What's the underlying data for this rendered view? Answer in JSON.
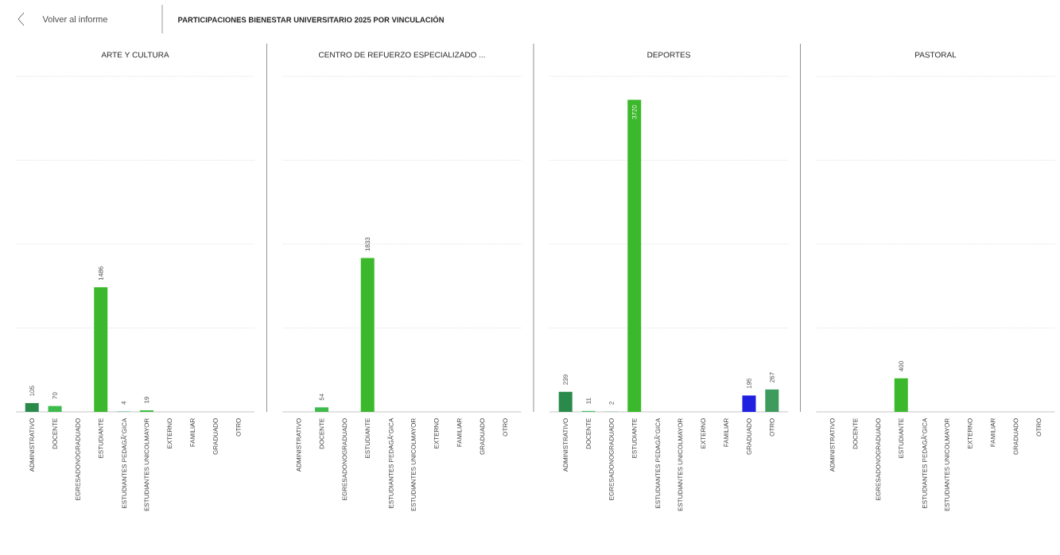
{
  "chart_data": [
    {
      "type": "bar",
      "title": "ARTE Y CULTURA",
      "annotations": [
        "Volver al informe",
        "PARTICIPACIONES BIENESTAR UNIVERSITARIO 2025 POR VINCULACIÓN"
      ],
      "categories": [
        "ADMINISTRATIVO",
        "DOCENTE",
        "EGRESADONOGRADUADO",
        "ESTUDIANTE",
        "ESTUDIANTES PEDAGÃ“GICA",
        "ESTUDIANTES UNICOLMAYOR",
        "EXTERNO",
        "FAMILIAR",
        "GRADUADO",
        "OTRO"
      ],
      "values": [
        105,
        70,
        null,
        1486,
        4,
        19,
        null,
        null,
        null,
        null
      ],
      "colors": [
        "#2a8a4a",
        "#3dbb4c",
        null,
        "#3cb82c",
        "#44c27a",
        "#3cbe48",
        null,
        null,
        null,
        null
      ],
      "ylim": [
        0,
        4000
      ],
      "yticks": [
        {
          "value": 0,
          "label": null
        },
        {
          "value": 1000,
          "label": null
        },
        {
          "value": 2000,
          "label": null
        },
        {
          "value": 3000,
          "label": null
        },
        {
          "value": 4000,
          "label": null
        }
      ],
      "grid": "y",
      "tick_labels": "x",
      "data_labels": true
    },
    {
      "type": "bar",
      "title": "CENTRO DE REFUERZO ESPECIALIZADO ...",
      "categories": [
        "ADMINISTRATIVO",
        "DOCENTE",
        "EGRESADONOGRADUADO",
        "ESTUDIANTE",
        "ESTUDIANTES PEDAGÃ“GICA",
        "ESTUDIANTES UNICOLMAYOR",
        "EXTERNO",
        "FAMILIAR",
        "GRADUADO",
        "OTRO"
      ],
      "values": [
        null,
        54,
        null,
        1833,
        null,
        null,
        null,
        null,
        null,
        null
      ],
      "colors": [
        null,
        "#3dbb4c",
        null,
        "#3cb82c",
        null,
        null,
        null,
        null,
        null,
        null
      ],
      "ylim": [
        0,
        4000
      ],
      "yticks": [
        {
          "value": 0,
          "label": null
        },
        {
          "value": 1000,
          "label": null
        },
        {
          "value": 2000,
          "label": null
        },
        {
          "value": 3000,
          "label": null
        },
        {
          "value": 4000,
          "label": null
        }
      ],
      "grid": "y",
      "tick_labels": "x",
      "data_labels": true
    },
    {
      "type": "bar",
      "title": "DEPORTES",
      "categories": [
        "ADMINISTRATIVO",
        "DOCENTE",
        "EGRESADONOGRADUADO",
        "ESTUDIANTE",
        "ESTUDIANTES PEDAGÃ“GICA",
        "ESTUDIANTES UNICOLMAYOR",
        "EXTERNO",
        "FAMILIAR",
        "GRADUADO",
        "OTRO"
      ],
      "values": [
        239,
        11,
        2,
        3720,
        null,
        null,
        null,
        null,
        195,
        267
      ],
      "colors": [
        "#2a8a4a",
        "#4cc070",
        "#44c060",
        "#3cb82c",
        null,
        null,
        null,
        null,
        "#2020e0",
        "#3f9a5e"
      ],
      "ylim": [
        0,
        4000
      ],
      "yticks": [
        {
          "value": 0,
          "label": null
        },
        {
          "value": 1000,
          "label": null
        },
        {
          "value": 2000,
          "label": null
        },
        {
          "value": 3000,
          "label": null
        },
        {
          "value": 4000,
          "label": null
        }
      ],
      "grid": "y",
      "tick_labels": "x",
      "data_labels": true
    },
    {
      "type": "bar",
      "title": "PASTORAL",
      "categories": [
        "ADMINISTRATIVO",
        "DOCENTE",
        "EGRESADONOGRADUADO",
        "ESTUDIANTE",
        "ESTUDIANTES PEDAGÃ“GICA",
        "ESTUDIANTES UNICOLMAYOR",
        "EXTERNO",
        "FAMILIAR",
        "GRADUADO",
        "OTRO"
      ],
      "values": [
        null,
        null,
        null,
        400,
        null,
        null,
        null,
        null,
        null,
        null
      ],
      "colors": [
        null,
        null,
        null,
        "#3cb82c",
        null,
        null,
        null,
        null,
        null,
        null
      ],
      "ylim": [
        0,
        4000
      ],
      "yticks": [
        {
          "value": 0,
          "label": null
        },
        {
          "value": 1000,
          "label": null
        },
        {
          "value": 2000,
          "label": null
        },
        {
          "value": 3000,
          "label": null
        },
        {
          "value": 4000,
          "label": null
        }
      ],
      "grid": "y",
      "tick_labels": "x",
      "data_labels": true
    }
  ]
}
